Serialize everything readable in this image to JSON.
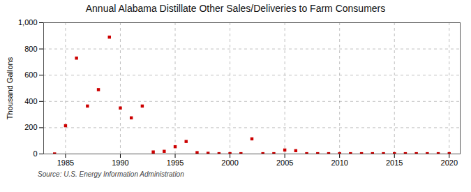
{
  "chart_data": {
    "type": "scatter",
    "title": "Annual Alabama Distillate Other Sales/Deliveries to Farm Consumers",
    "ylabel": "Thousand Gallons",
    "source": "Source: U.S. Energy Information Administration",
    "x": [
      1984,
      1985,
      1986,
      1987,
      1988,
      1989,
      1990,
      1991,
      1992,
      1993,
      1994,
      1995,
      1996,
      1997,
      1998,
      1999,
      2000,
      2001,
      2002,
      2003,
      2004,
      2005,
      2006,
      2007,
      2008,
      2009,
      2010,
      2011,
      2012,
      2013,
      2014,
      2015,
      2016,
      2017,
      2018,
      2019,
      2020
    ],
    "values": [
      0,
      215,
      730,
      365,
      490,
      890,
      350,
      275,
      365,
      15,
      20,
      55,
      95,
      10,
      5,
      2,
      2,
      2,
      115,
      2,
      2,
      30,
      25,
      2,
      2,
      2,
      2,
      2,
      2,
      2,
      2,
      2,
      2,
      2,
      2,
      2,
      2
    ],
    "color": "#cc0000",
    "marker": "square",
    "xlim": [
      1983,
      2021
    ],
    "ylim": [
      0,
      1000
    ],
    "xticks": [
      1985,
      1990,
      1995,
      2000,
      2005,
      2010,
      2015,
      2020
    ],
    "yticks": [
      0,
      200,
      400,
      600,
      800,
      {
        "value": 1000,
        "label": "1,000"
      }
    ],
    "grid": true
  }
}
